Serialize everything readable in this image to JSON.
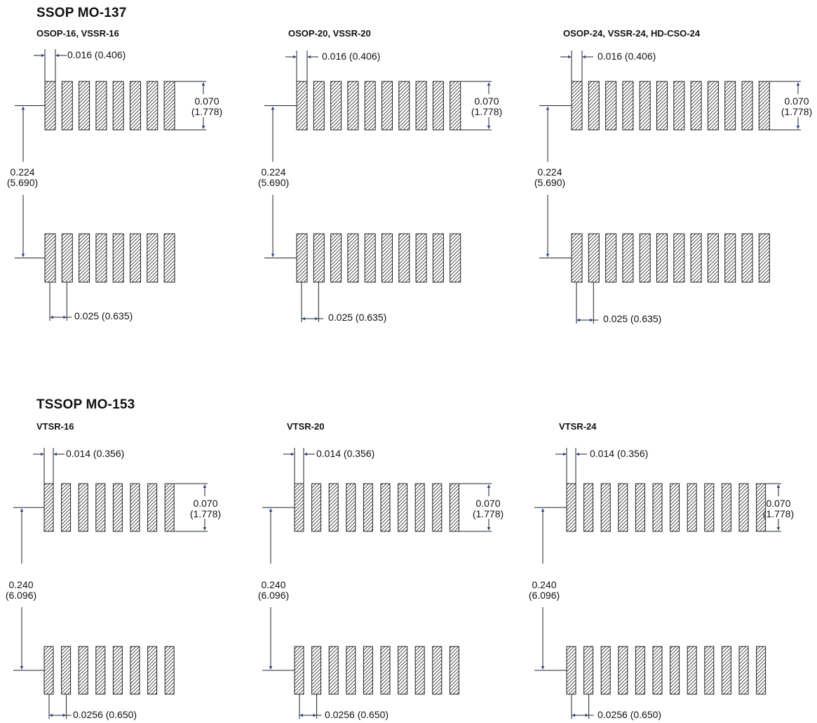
{
  "sections": [
    {
      "title": "SSOP MO-137",
      "packages": [
        {
          "label": "OSOP-16, VSSR-16",
          "pads": 8,
          "pad_width": "0.016 (0.406)",
          "pad_length_in": "0.070",
          "pad_length_mm": "(1.778)",
          "row_spacing_in": "0.224",
          "row_spacing_mm": "(5.690)",
          "pitch": "0.025 (0.635)"
        },
        {
          "label": "OSOP-20, VSSR-20",
          "pads": 10,
          "pad_width": "0.016 (0.406)",
          "pad_length_in": "0.070",
          "pad_length_mm": "(1.778)",
          "row_spacing_in": "0.224",
          "row_spacing_mm": "(5.690)",
          "pitch": "0.025 (0.635)"
        },
        {
          "label": "OSOP-24, VSSR-24, HD-CSO-24",
          "pads": 12,
          "pad_width": "0.016 (0.406)",
          "pad_length_in": "0.070",
          "pad_length_mm": "(1.778)",
          "row_spacing_in": "0.224",
          "row_spacing_mm": "(5.690)",
          "pitch": "0.025 (0.635)"
        }
      ]
    },
    {
      "title": "TSSOP MO-153",
      "packages": [
        {
          "label": "VTSR-16",
          "pads": 8,
          "pad_width": "0.014 (0.356)",
          "pad_length_in": "0.070",
          "pad_length_mm": "(1.778)",
          "row_spacing_in": "0.240",
          "row_spacing_mm": "(6.096)",
          "pitch": "0.0256 (0.650)"
        },
        {
          "label": "VTSR-20",
          "pads": 10,
          "pad_width": "0.014 (0.356)",
          "pad_length_in": "0.070",
          "pad_length_mm": "(1.778)",
          "row_spacing_in": "0.240",
          "row_spacing_mm": "(6.096)",
          "pitch": "0.0256 (0.650)"
        },
        {
          "label": "VTSR-24",
          "pads": 12,
          "pad_width": "0.014 (0.356)",
          "pad_length_in": "0.070",
          "pad_length_mm": "(1.778)",
          "row_spacing_in": "0.240",
          "row_spacing_mm": "(6.096)",
          "pitch": "0.0256 (0.650)"
        }
      ]
    }
  ],
  "colors": {
    "line": "#222222",
    "arrow": "#2c4a8c",
    "hatch": "#333333"
  }
}
